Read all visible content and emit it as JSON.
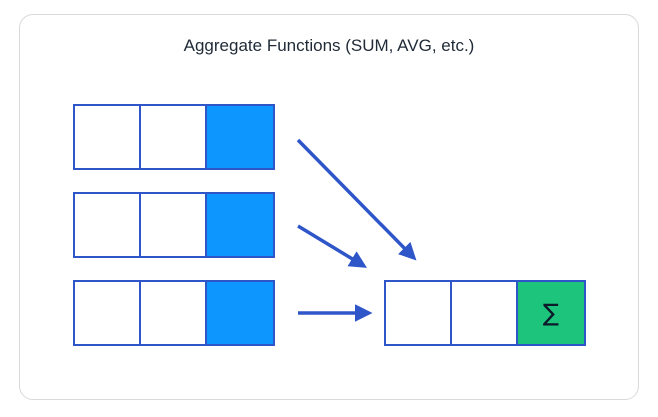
{
  "diagram": {
    "title": "Aggregate Functions (SUM, AVG, etc.)",
    "result_symbol": "∑",
    "colors": {
      "border": "#2f56c9",
      "highlight": "#0e96ff",
      "sum": "#1dc47b",
      "arrow": "#2f56c9",
      "card_border": "#d9d9d9"
    },
    "input_rows": [
      {
        "cells": [
          "",
          "",
          ""
        ],
        "highlighted_cell": 2
      },
      {
        "cells": [
          "",
          "",
          ""
        ],
        "highlighted_cell": 2
      },
      {
        "cells": [
          "",
          "",
          ""
        ],
        "highlighted_cell": 2
      }
    ],
    "output_row": {
      "cells": [
        "",
        "",
        "∑"
      ],
      "aggregate_cell": 2
    }
  }
}
